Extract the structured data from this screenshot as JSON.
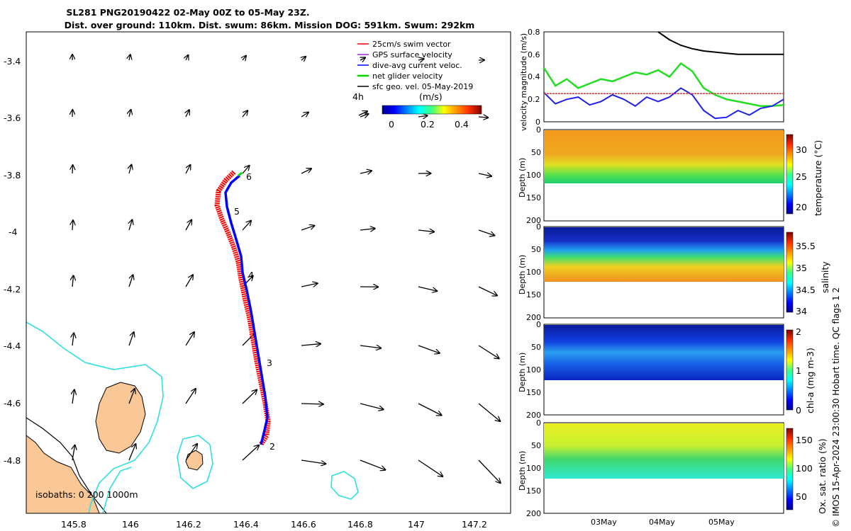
{
  "header": {
    "title_line1": "SL281 PNG20190422 02-May 00Z to 05-May 23Z.",
    "title_line2": "Dist. over ground: 110km. Dist. swum: 86km. Mission DOG: 591km. Swum: 292km"
  },
  "copyright": "© IMOS 15-Apr-2024 23:00:30 Hobart time. QC flags 1  2",
  "map": {
    "x_ticks": [
      "145.8",
      "146",
      "146.2",
      "146.4",
      "146.6",
      "146.8",
      "147",
      "147.2"
    ],
    "y_ticks": [
      "-3.4",
      "-3.6",
      "-3.8",
      "-4",
      "-4.2",
      "-4.4",
      "-4.6",
      "-4.8"
    ],
    "isobath_label": "isobaths: 0   200  1000m",
    "legend": [
      {
        "label": "25cm/s swim vector",
        "color": "#ff0000"
      },
      {
        "label": "GPS surface velocity",
        "color": "#a020f0"
      },
      {
        "label": "dive-avg current veloc.",
        "color": "#0000ff"
      },
      {
        "label": "net glider velocity",
        "color": "#00dd00"
      },
      {
        "label": "sfc geo. vel. 05-May-2019",
        "color": "#000000"
      }
    ],
    "scale_label": "4h",
    "colorbar_title": "(m/s)",
    "colorbar_ticks": [
      "0",
      "0.2",
      "0.4"
    ],
    "waypoints": [
      "2",
      "3",
      "4",
      "5",
      "6"
    ]
  },
  "panels": {
    "velocity": {
      "ylabel": "velocity magnitude (m/s)",
      "ticks": [
        "0.8",
        "0.6",
        "0.4",
        "0.2",
        "0"
      ]
    },
    "temperature": {
      "ylabel": "temperature (°C)",
      "cticks": [
        "30",
        "25",
        "20"
      ]
    },
    "salinity": {
      "ylabel": "salinity",
      "cticks": [
        "35.5",
        "35",
        "34.5",
        "34"
      ]
    },
    "chla": {
      "ylabel": "chl-a (mg m-3)",
      "cticks": [
        "2",
        "1",
        "0"
      ]
    },
    "oxygen": {
      "ylabel": "Ox. sat. ratio (%)",
      "cticks": [
        "150",
        "100",
        "50"
      ]
    },
    "depth_label": "Depth (m)",
    "depth_ticks": [
      "0",
      "50",
      "100",
      "150",
      "200"
    ],
    "x_ticks": [
      "03May",
      "04May",
      "05May"
    ]
  },
  "chart_data": [
    {
      "type": "line",
      "title": "velocity magnitude (m/s)",
      "xlabel": "",
      "ylabel": "velocity magnitude (m/s)",
      "ylim": [
        0,
        0.8
      ],
      "series": [
        {
          "name": "net glider velocity (green)",
          "values": [
            0.48,
            0.32,
            0.38,
            0.3,
            0.34,
            0.38,
            0.36,
            0.4,
            0.44,
            0.42,
            0.46,
            0.4,
            0.52,
            0.45,
            0.3,
            0.24,
            0.2,
            0.18,
            0.16,
            0.14,
            0.14,
            0.15
          ]
        },
        {
          "name": "dive-avg current (blue)",
          "values": [
            0.26,
            0.16,
            0.2,
            0.22,
            0.15,
            0.18,
            0.24,
            0.2,
            0.14,
            0.22,
            0.18,
            0.22,
            0.3,
            0.24,
            0.1,
            0.03,
            0.04,
            0.1,
            0.06,
            0.12,
            0.14,
            0.2
          ]
        },
        {
          "name": "swim speed (red)",
          "values": [
            0.25,
            0.25,
            0.25,
            0.25,
            0.25,
            0.25,
            0.25,
            0.25,
            0.25,
            0.25,
            0.25,
            0.25,
            0.25,
            0.25,
            0.25,
            0.25,
            0.25,
            0.25,
            0.25,
            0.25,
            0.25,
            0.25
          ]
        },
        {
          "name": "mission (black)",
          "values": [
            null,
            null,
            null,
            null,
            null,
            null,
            null,
            null,
            null,
            null,
            0.8,
            0.73,
            0.68,
            0.65,
            0.63,
            0.62,
            0.61,
            0.6,
            0.6,
            0.6,
            0.6,
            0.6
          ]
        }
      ]
    },
    {
      "type": "heatmap",
      "title": "temperature (°C)",
      "ylabel": "Depth (m)",
      "clim": [
        18,
        32
      ]
    },
    {
      "type": "heatmap",
      "title": "salinity",
      "ylabel": "Depth (m)",
      "clim": [
        33.9,
        35.7
      ]
    },
    {
      "type": "heatmap",
      "title": "chl-a (mg m-3)",
      "ylabel": "Depth (m)",
      "clim": [
        0,
        2
      ]
    },
    {
      "type": "heatmap",
      "title": "Ox. sat. ratio (%)",
      "ylabel": "Depth (m)",
      "clim": [
        25,
        175
      ]
    }
  ]
}
